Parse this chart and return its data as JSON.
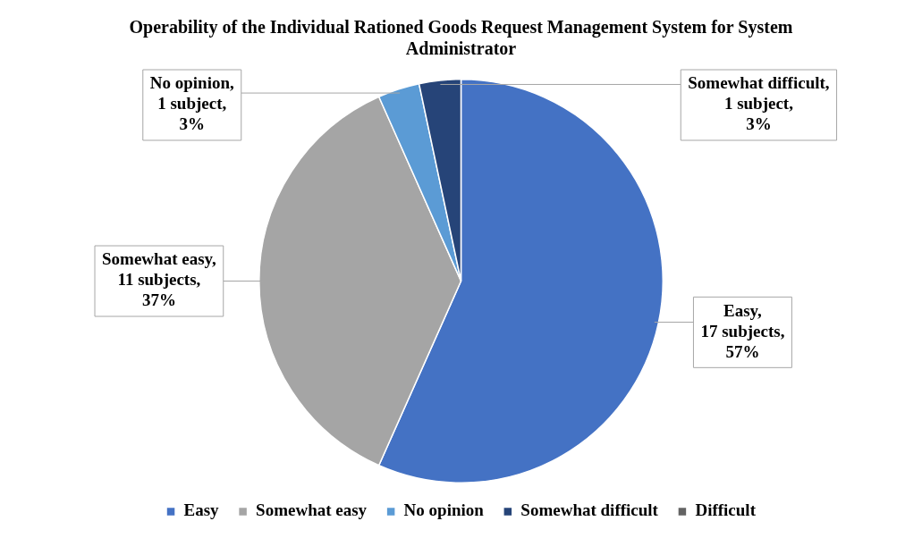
{
  "chart_data": {
    "type": "pie",
    "title": "Operability of the Individual Rationed Goods Request Management System for System Administrator",
    "categories": [
      "Easy",
      "Somewhat easy",
      "No opinion",
      "Somewhat difficult",
      "Difficult"
    ],
    "values": [
      17,
      11,
      1,
      1,
      0
    ],
    "colors": [
      "#4472c4",
      "#a5a5a5",
      "#5b9bd5",
      "#264478",
      "#636363"
    ],
    "value_labels": [
      "Easy,\n17 subjects,\n57%",
      "Somewhat easy,\n11 subjects,\n37%",
      "No opinion,\n1 subject,\n3%",
      "Somewhat difficult,\n1 subject,\n3%",
      null
    ],
    "legend": "bottom"
  }
}
